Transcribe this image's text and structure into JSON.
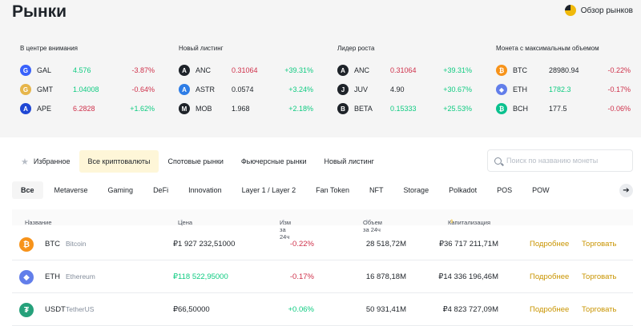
{
  "header": {
    "title": "Рынки",
    "overview_label": "Обзор рынков"
  },
  "highlights": [
    {
      "title": "В центре внимания",
      "items": [
        {
          "symbol": "GAL",
          "price": "4.576",
          "price_color": "up",
          "change": "-3.87%",
          "change_color": "dn",
          "icon_color": "#3861fb",
          "icon": "gal-icon",
          "glyph": "G"
        },
        {
          "symbol": "GMT",
          "price": "1.04008",
          "price_color": "up",
          "change": "-0.64%",
          "change_color": "dn",
          "icon_color": "#e6b54a",
          "icon": "gmt-icon",
          "glyph": "G"
        },
        {
          "symbol": "APE",
          "price": "6.2828",
          "price_color": "dn",
          "change": "+1.62%",
          "change_color": "up",
          "icon_color": "#1f47d4",
          "icon": "ape-icon",
          "glyph": "A"
        }
      ]
    },
    {
      "title": "Новый листинг",
      "items": [
        {
          "symbol": "ANC",
          "price": "0.31064",
          "price_color": "dn",
          "change": "+39.31%",
          "change_color": "up",
          "icon_color": "#1e2329",
          "icon": "anc-icon",
          "glyph": "A"
        },
        {
          "symbol": "ASTR",
          "price": "0.0574",
          "price_color": "nt",
          "change": "+3.24%",
          "change_color": "up",
          "icon_color": "#2e7de6",
          "icon": "astr-icon",
          "glyph": "A"
        },
        {
          "symbol": "MOB",
          "price": "1.968",
          "price_color": "nt",
          "change": "+2.18%",
          "change_color": "up",
          "icon_color": "#1e2329",
          "icon": "mob-icon",
          "glyph": "M"
        }
      ]
    },
    {
      "title": "Лидер роста",
      "items": [
        {
          "symbol": "ANC",
          "price": "0.31064",
          "price_color": "dn",
          "change": "+39.31%",
          "change_color": "up",
          "icon_color": "#1e2329",
          "icon": "anc-icon",
          "glyph": "A"
        },
        {
          "symbol": "JUV",
          "price": "4.90",
          "price_color": "nt",
          "change": "+30.67%",
          "change_color": "up",
          "icon_color": "#1e2329",
          "icon": "juv-icon",
          "glyph": "J"
        },
        {
          "symbol": "BETA",
          "price": "0.15333",
          "price_color": "up",
          "change": "+25.53%",
          "change_color": "up",
          "icon_color": "#1e2329",
          "icon": "beta-icon",
          "glyph": "B"
        }
      ]
    },
    {
      "title": "Монета с максимальным объемом",
      "items": [
        {
          "symbol": "BTC",
          "price": "28980.94",
          "price_color": "nt",
          "change": "-0.22%",
          "change_color": "dn",
          "icon_color": "#f7931a",
          "icon": "btc-icon",
          "glyph": "₿"
        },
        {
          "symbol": "ETH",
          "price": "1782.3",
          "price_color": "up",
          "change": "-0.17%",
          "change_color": "dn",
          "icon_color": "#627eea",
          "icon": "eth-icon",
          "glyph": "◆"
        },
        {
          "symbol": "BCH",
          "price": "177.5",
          "price_color": "nt",
          "change": "-0.06%",
          "change_color": "dn",
          "icon_color": "#0ac18e",
          "icon": "bch-icon",
          "glyph": "₿"
        }
      ]
    }
  ],
  "tabs": [
    "Избранное",
    "Все криптовалюты",
    "Спотовые рынки",
    "Фьючерсные рынки",
    "Новый листинг"
  ],
  "active_tab": "Все криптовалюты",
  "search": {
    "placeholder": "Поиск по названию монеты"
  },
  "categories": [
    "Все",
    "Metaverse",
    "Gaming",
    "DeFi",
    "Innovation",
    "Layer 1 / Layer 2",
    "Fan Token",
    "NFT",
    "Storage",
    "Polkadot",
    "POS",
    "POW"
  ],
  "active_category": "Все",
  "table": {
    "headers": {
      "name": "Название",
      "price": "Цена",
      "change": "Изм за 24ч",
      "volume": "Объем за 24ч",
      "cap": "Капитализация"
    },
    "rows": [
      {
        "symbol": "BTC",
        "name": "Bitcoin",
        "price": "₽1 927 232,51000",
        "price_color": "nt",
        "change": "-0.22%",
        "change_color": "dn",
        "volume": "28 518,72M",
        "cap": "₽36 717 211,71M",
        "icon_color": "#f7931a",
        "icon": "btc-icon",
        "glyph": "₿"
      },
      {
        "symbol": "ETH",
        "name": "Ethereum",
        "price": "₽118 522,95000",
        "price_color": "up",
        "change": "-0.17%",
        "change_color": "dn",
        "volume": "16 878,18M",
        "cap": "₽14 336 196,46M",
        "icon_color": "#627eea",
        "icon": "eth-icon",
        "glyph": "◆"
      },
      {
        "symbol": "USDT",
        "name": "TetherUS",
        "price": "₽66,50000",
        "price_color": "nt",
        "change": "+0.06%",
        "change_color": "up",
        "volume": "50 931,41M",
        "cap": "₽4 823 727,09M",
        "icon_color": "#26a17b",
        "icon": "usdt-icon",
        "glyph": "₮"
      }
    ],
    "more_label": "Подробнее",
    "trade_label": "Торговать"
  },
  "colors": {
    "up": "#0ecb81",
    "down": "#cf304a",
    "accent": "#f0b90b",
    "link": "#c99400"
  }
}
